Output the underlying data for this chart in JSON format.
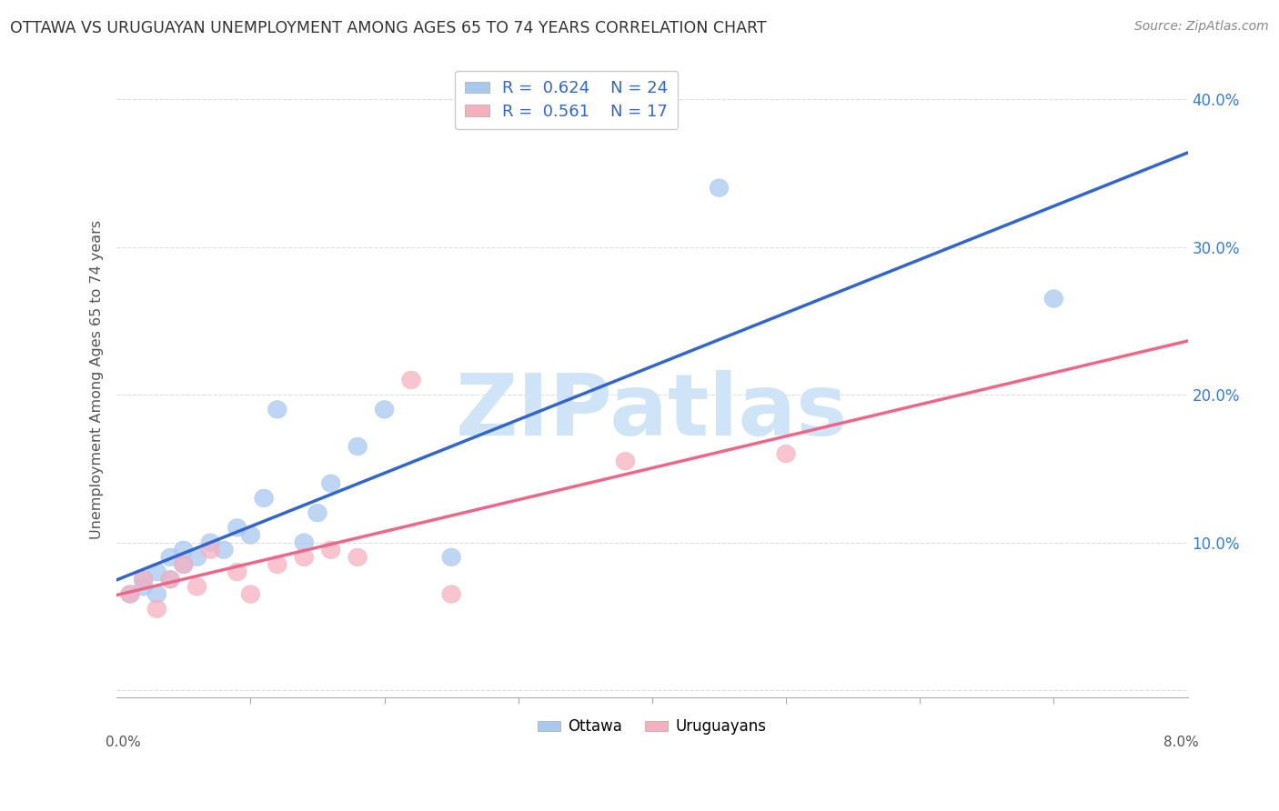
{
  "title": "OTTAWA VS URUGUAYAN UNEMPLOYMENT AMONG AGES 65 TO 74 YEARS CORRELATION CHART",
  "source": "Source: ZipAtlas.com",
  "ylabel": "Unemployment Among Ages 65 to 74 years",
  "xlim": [
    0.0,
    0.08
  ],
  "ylim": [
    -0.005,
    0.425
  ],
  "ottawa_R": 0.624,
  "ottawa_N": 24,
  "uruguayan_R": 0.561,
  "uruguayan_N": 17,
  "ottawa_color": "#a8c8f0",
  "uruguayan_color": "#f5b0c0",
  "ottawa_line_color": "#3366cc",
  "uruguayan_line_color": "#ee6688",
  "legend_text_color": "#3366cc",
  "title_color": "#333333",
  "watermark": "ZIPatlas",
  "watermark_color": "#d0e4f8",
  "ottawa_x": [
    0.001,
    0.002,
    0.002,
    0.003,
    0.003,
    0.004,
    0.004,
    0.005,
    0.005,
    0.006,
    0.007,
    0.008,
    0.009,
    0.01,
    0.011,
    0.012,
    0.014,
    0.015,
    0.016,
    0.018,
    0.02,
    0.025,
    0.045,
    0.07
  ],
  "ottawa_y": [
    0.065,
    0.075,
    0.07,
    0.08,
    0.065,
    0.075,
    0.09,
    0.085,
    0.095,
    0.09,
    0.1,
    0.095,
    0.11,
    0.105,
    0.13,
    0.19,
    0.1,
    0.12,
    0.14,
    0.165,
    0.19,
    0.09,
    0.34,
    0.265
  ],
  "uruguayan_x": [
    0.001,
    0.002,
    0.003,
    0.004,
    0.005,
    0.006,
    0.007,
    0.009,
    0.01,
    0.012,
    0.014,
    0.016,
    0.018,
    0.022,
    0.025,
    0.038,
    0.05
  ],
  "uruguayan_y": [
    0.065,
    0.075,
    0.055,
    0.075,
    0.085,
    0.07,
    0.095,
    0.08,
    0.065,
    0.085,
    0.09,
    0.095,
    0.09,
    0.21,
    0.065,
    0.155,
    0.16
  ],
  "yticks": [
    0.0,
    0.1,
    0.2,
    0.3,
    0.4
  ],
  "ytick_labels": [
    "",
    "10.0%",
    "20.0%",
    "30.0%",
    "40.0%"
  ],
  "xtick_positions": [
    0.01,
    0.02,
    0.03,
    0.04,
    0.05,
    0.06,
    0.07
  ],
  "grid_color": "#dddddd",
  "background_color": "#ffffff"
}
